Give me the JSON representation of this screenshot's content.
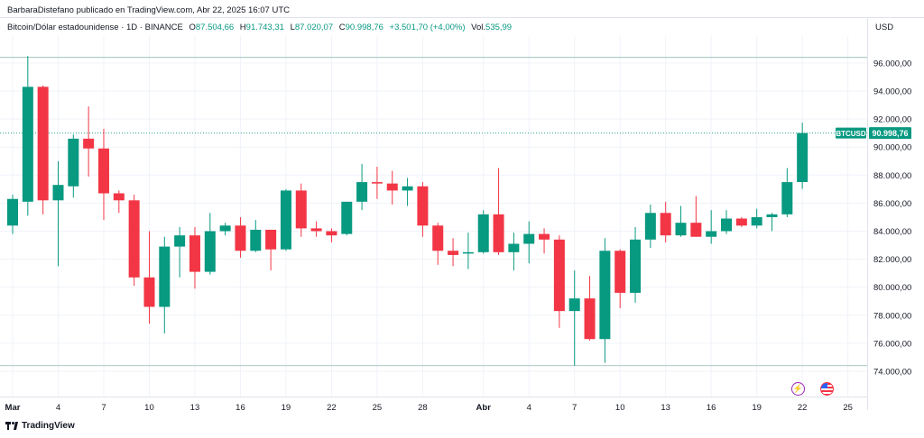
{
  "header": {
    "published": "BarbaraDistefano publicado en TradingView.com, Abr 22, 2025 16:07 UTC",
    "symbol_title": "Bitcoin/Dólar estadounidense · 1D · BINANCE",
    "o_label": "O",
    "o_value": "87.504,66",
    "h_label": "H",
    "h_value": "91.743,31",
    "l_label": "L",
    "l_value": "87.020,07",
    "c_label": "C",
    "c_value": "90.998,76",
    "change": "+3.501,70 (+4,00%)",
    "vol_label": "Vol.",
    "vol_value": "535,99"
  },
  "currency": "USD",
  "brand": "TradingView",
  "colors": {
    "up": "#089981",
    "down": "#f23645",
    "grid": "#f0f3fa",
    "text": "#131722"
  },
  "chart_data": {
    "type": "candlestick",
    "symbol": "BTCUSD",
    "last_price_label": "90.998,76",
    "last_price": 90998.76,
    "ylim": [
      73000,
      97000
    ],
    "y_ticks": [
      74000,
      76000,
      78000,
      80000,
      82000,
      84000,
      86000,
      88000,
      90000,
      92000,
      94000,
      96000
    ],
    "y_tick_labels": [
      "74.000,00",
      "76.000,00",
      "78.000,00",
      "80.000,00",
      "82.000,00",
      "84.000,00",
      "86.000,00",
      "88.000,00",
      "90.000,00",
      "92.000,00",
      "94.000,00",
      "96.000,00"
    ],
    "x_tick_labels": [
      {
        "day": 1,
        "label": "Mar",
        "bold": true
      },
      {
        "day": 4,
        "label": "4"
      },
      {
        "day": 7,
        "label": "7"
      },
      {
        "day": 10,
        "label": "10"
      },
      {
        "day": 13,
        "label": "13"
      },
      {
        "day": 16,
        "label": "16"
      },
      {
        "day": 19,
        "label": "19"
      },
      {
        "day": 22,
        "label": "22"
      },
      {
        "day": 25,
        "label": "25"
      },
      {
        "day": 28,
        "label": "28"
      },
      {
        "day": 32,
        "label": "Abr",
        "bold": true
      },
      {
        "day": 35,
        "label": "4"
      },
      {
        "day": 38,
        "label": "7"
      },
      {
        "day": 41,
        "label": "10"
      },
      {
        "day": 44,
        "label": "13"
      },
      {
        "day": 47,
        "label": "16"
      },
      {
        "day": 50,
        "label": "19"
      },
      {
        "day": 53,
        "label": "22"
      },
      {
        "day": 56,
        "label": "25"
      }
    ],
    "range_high": 96400,
    "range_low": 74400,
    "candles": [
      {
        "date": "2025-03-01",
        "o": 84400,
        "h": 86600,
        "l": 83800,
        "c": 86300
      },
      {
        "date": "2025-03-02",
        "o": 86100,
        "h": 96500,
        "l": 85100,
        "c": 94300
      },
      {
        "date": "2025-03-03",
        "o": 94300,
        "h": 94400,
        "l": 85200,
        "c": 86200
      },
      {
        "date": "2025-03-04",
        "o": 86200,
        "h": 89000,
        "l": 81500,
        "c": 87300
      },
      {
        "date": "2025-03-05",
        "o": 87200,
        "h": 90900,
        "l": 86400,
        "c": 90600
      },
      {
        "date": "2025-03-06",
        "o": 90600,
        "h": 92900,
        "l": 87900,
        "c": 89900
      },
      {
        "date": "2025-03-07",
        "o": 89900,
        "h": 91300,
        "l": 84800,
        "c": 86700
      },
      {
        "date": "2025-03-08",
        "o": 86700,
        "h": 86900,
        "l": 85300,
        "c": 86200
      },
      {
        "date": "2025-03-09",
        "o": 86200,
        "h": 86600,
        "l": 80100,
        "c": 80700
      },
      {
        "date": "2025-03-10",
        "o": 80700,
        "h": 84000,
        "l": 77400,
        "c": 78600
      },
      {
        "date": "2025-03-11",
        "o": 78600,
        "h": 83600,
        "l": 76700,
        "c": 82900
      },
      {
        "date": "2025-03-12",
        "o": 82900,
        "h": 84300,
        "l": 80700,
        "c": 83700
      },
      {
        "date": "2025-03-13",
        "o": 83700,
        "h": 84300,
        "l": 79900,
        "c": 81100
      },
      {
        "date": "2025-03-14",
        "o": 81100,
        "h": 85300,
        "l": 80900,
        "c": 84000
      },
      {
        "date": "2025-03-15",
        "o": 84000,
        "h": 84600,
        "l": 83700,
        "c": 84400
      },
      {
        "date": "2025-03-16",
        "o": 84400,
        "h": 85000,
        "l": 82100,
        "c": 82600
      },
      {
        "date": "2025-03-17",
        "o": 82600,
        "h": 84800,
        "l": 82500,
        "c": 84100
      },
      {
        "date": "2025-03-18",
        "o": 84100,
        "h": 84100,
        "l": 81200,
        "c": 82700
      },
      {
        "date": "2025-03-19",
        "o": 82700,
        "h": 87000,
        "l": 82600,
        "c": 86900
      },
      {
        "date": "2025-03-20",
        "o": 86900,
        "h": 87400,
        "l": 83600,
        "c": 84200
      },
      {
        "date": "2025-03-21",
        "o": 84200,
        "h": 84700,
        "l": 83600,
        "c": 84000
      },
      {
        "date": "2025-03-22",
        "o": 84000,
        "h": 84200,
        "l": 83200,
        "c": 83700
      },
      {
        "date": "2025-03-23",
        "o": 83800,
        "h": 86100,
        "l": 83700,
        "c": 86100
      },
      {
        "date": "2025-03-24",
        "o": 86100,
        "h": 88800,
        "l": 85500,
        "c": 87500
      },
      {
        "date": "2025-03-25",
        "o": 87500,
        "h": 88600,
        "l": 86300,
        "c": 87400
      },
      {
        "date": "2025-03-26",
        "o": 87400,
        "h": 88300,
        "l": 85900,
        "c": 86900
      },
      {
        "date": "2025-03-27",
        "o": 86900,
        "h": 87800,
        "l": 85800,
        "c": 87200
      },
      {
        "date": "2025-03-28",
        "o": 87200,
        "h": 87500,
        "l": 83600,
        "c": 84400
      },
      {
        "date": "2025-03-29",
        "o": 84400,
        "h": 84600,
        "l": 81600,
        "c": 82600
      },
      {
        "date": "2025-03-30",
        "o": 82600,
        "h": 83500,
        "l": 81500,
        "c": 82300
      },
      {
        "date": "2025-03-31",
        "o": 82400,
        "h": 83900,
        "l": 81300,
        "c": 82500
      },
      {
        "date": "2025-04-01",
        "o": 82500,
        "h": 85500,
        "l": 82400,
        "c": 85200
      },
      {
        "date": "2025-04-02",
        "o": 85200,
        "h": 88500,
        "l": 82300,
        "c": 82500
      },
      {
        "date": "2025-04-03",
        "o": 82500,
        "h": 83900,
        "l": 81200,
        "c": 83100
      },
      {
        "date": "2025-04-04",
        "o": 83100,
        "h": 84700,
        "l": 81700,
        "c": 83800
      },
      {
        "date": "2025-04-05",
        "o": 83800,
        "h": 84200,
        "l": 82400,
        "c": 83400
      },
      {
        "date": "2025-04-06",
        "o": 83400,
        "h": 83700,
        "l": 77100,
        "c": 78300
      },
      {
        "date": "2025-04-07",
        "o": 78300,
        "h": 81200,
        "l": 74400,
        "c": 79200
      },
      {
        "date": "2025-04-08",
        "o": 79200,
        "h": 80800,
        "l": 76200,
        "c": 76300
      },
      {
        "date": "2025-04-09",
        "o": 76300,
        "h": 83500,
        "l": 74600,
        "c": 82600
      },
      {
        "date": "2025-04-10",
        "o": 82600,
        "h": 82700,
        "l": 78500,
        "c": 79600
      },
      {
        "date": "2025-04-11",
        "o": 79600,
        "h": 84300,
        "l": 78900,
        "c": 83400
      },
      {
        "date": "2025-04-12",
        "o": 83400,
        "h": 85900,
        "l": 82800,
        "c": 85300
      },
      {
        "date": "2025-04-13",
        "o": 85300,
        "h": 86100,
        "l": 83200,
        "c": 83700
      },
      {
        "date": "2025-04-14",
        "o": 83700,
        "h": 85800,
        "l": 83600,
        "c": 84600
      },
      {
        "date": "2025-04-15",
        "o": 84600,
        "h": 86500,
        "l": 83600,
        "c": 83600
      },
      {
        "date": "2025-04-16",
        "o": 83600,
        "h": 85500,
        "l": 83100,
        "c": 84000
      },
      {
        "date": "2025-04-17",
        "o": 84000,
        "h": 85500,
        "l": 83800,
        "c": 84900
      },
      {
        "date": "2025-04-18",
        "o": 84900,
        "h": 85000,
        "l": 84300,
        "c": 84400
      },
      {
        "date": "2025-04-19",
        "o": 84400,
        "h": 85600,
        "l": 84200,
        "c": 85000
      },
      {
        "date": "2025-04-20",
        "o": 85000,
        "h": 85300,
        "l": 84000,
        "c": 85200
      },
      {
        "date": "2025-04-21",
        "o": 85200,
        "h": 88500,
        "l": 85000,
        "c": 87500
      },
      {
        "date": "2025-04-22",
        "o": 87505,
        "h": 91743,
        "l": 87020,
        "c": 90999
      }
    ]
  }
}
